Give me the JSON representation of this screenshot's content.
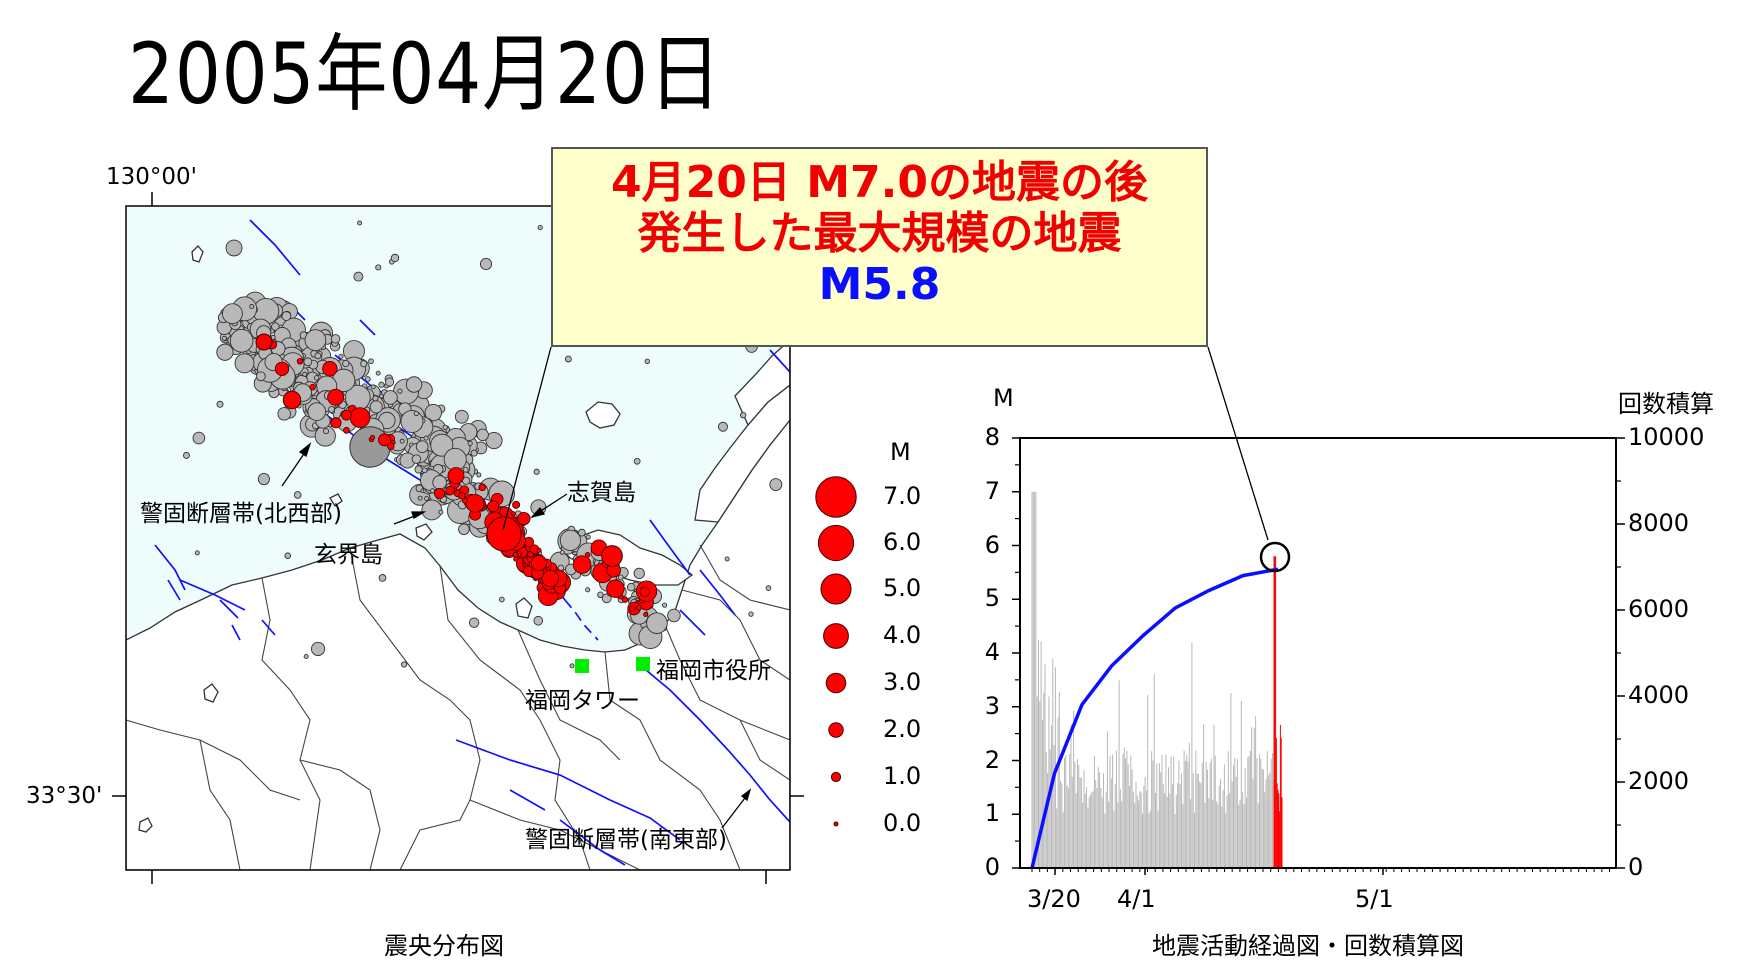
{
  "page_title": "2005年04月20日",
  "map": {
    "lon_label": "130°00'",
    "lat_label": "33°30'",
    "labels": {
      "fault_nw": "警固断層帯(北西部)",
      "genkai": "玄界島",
      "shika": "志賀島",
      "city_office": "福岡市役所",
      "tower": "福岡タワー",
      "fault_se": "警固断層帯(南東部)"
    },
    "caption": "震央分布図",
    "colors": {
      "sea": "#eefcfc",
      "fault": "#1010ff",
      "main_event": "#ff0000",
      "prior_event": "#b8b8b8",
      "landmark": "#00ee00"
    }
  },
  "legend": {
    "title": "M",
    "items": [
      "7.0",
      "6.0",
      "5.0",
      "4.0",
      "3.0",
      "2.0",
      "1.0",
      "0.0"
    ]
  },
  "callout": {
    "line1": "4月20日 M7.0の地震の後",
    "line2": "発生した最大規模の地震",
    "line3": "M5.8"
  },
  "chart_data": {
    "type": "bar",
    "title": "",
    "ylabel": "M",
    "y2label": "回数積算",
    "caption": "地震活動経過図・回数積算図",
    "ylim": [
      0,
      8
    ],
    "y2lim": [
      0,
      10000
    ],
    "yticks": [
      "0",
      "1",
      "2",
      "3",
      "4",
      "5",
      "6",
      "7",
      "8"
    ],
    "y2ticks": [
      "0",
      "2000",
      "4000",
      "6000",
      "8000",
      "10000"
    ],
    "xticks": [
      "3/20",
      "4/1",
      "5/1"
    ],
    "series": [
      {
        "name": "",
        "type": "bar",
        "color": "#b8b8b8",
        "peak_magnitude": 7.0
      },
      {
        "name": "",
        "type": "bar",
        "color": "#ff0000",
        "peak_magnitude": 5.8
      },
      {
        "name": "",
        "type": "line",
        "color": "#0a10ff",
        "y2_values": [
          0,
          2200,
          3800,
          4700,
          5400,
          6050,
          6450,
          6800,
          6950
        ]
      }
    ]
  }
}
